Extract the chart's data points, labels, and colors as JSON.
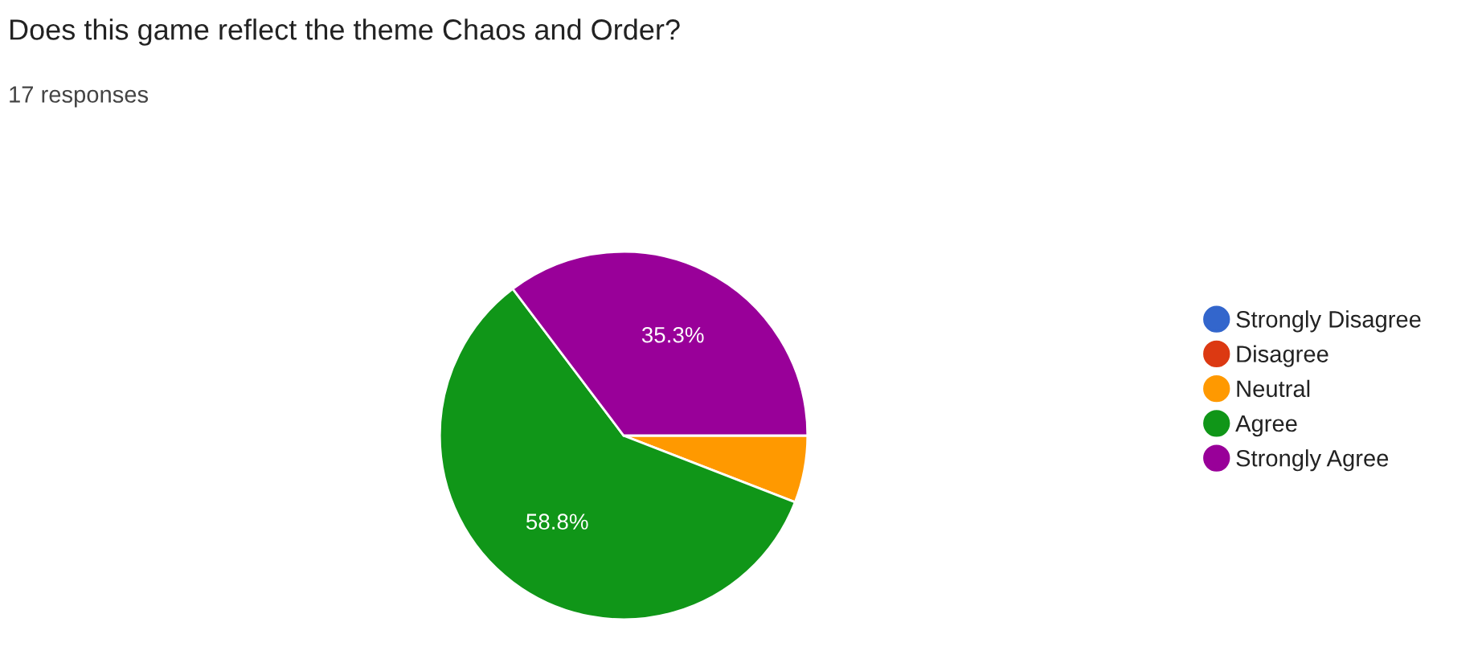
{
  "chart_data": {
    "type": "pie",
    "title": "Does this game reflect the theme Chaos and Order?",
    "subtitle": "17 responses",
    "categories": [
      "Strongly Disagree",
      "Disagree",
      "Neutral",
      "Agree",
      "Strongly Agree"
    ],
    "values": [
      0,
      0,
      5.9,
      58.8,
      35.3
    ],
    "colors": [
      "#3366cc",
      "#dc3912",
      "#ff9900",
      "#109618",
      "#990099"
    ],
    "value_labels": [
      null,
      null,
      null,
      "58.8%",
      "35.3%"
    ],
    "legend": "right"
  }
}
